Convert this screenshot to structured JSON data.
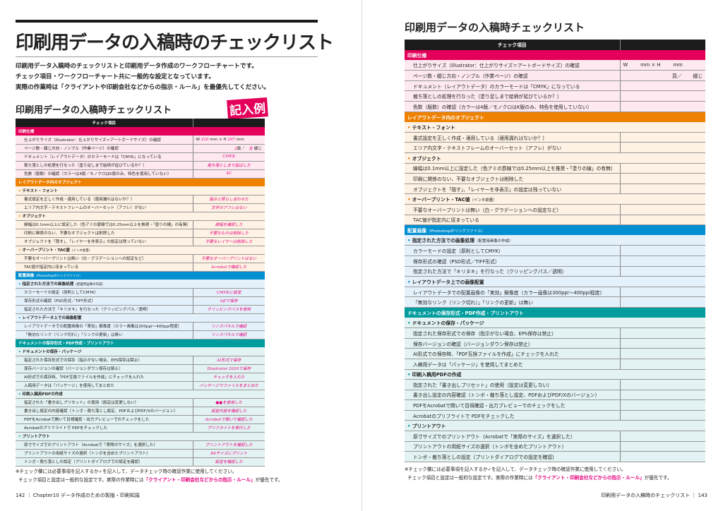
{
  "left": {
    "title": "印刷用データの入稿時のチェックリスト",
    "intro": [
      "印刷用データ入稿時のチェックリストと印刷用データ作成のワークフローチャートです。",
      "チェック項目・ワークフローチャート共に一般的な設定となっています。",
      "実際の作業時は「クライアントや印刷会社などからの指示・ルール」を最優先してください。"
    ],
    "subtitle": "印刷用データの入稿時チェックリスト",
    "stamp": "記入例",
    "footer": "142 ｜ Chapter10 データ作成のための製版・印刷知識"
  },
  "right": {
    "title": "印刷用データの入稿時チェックリスト",
    "footer": "印刷用データの入稿時のチェックリスト ｜ 143"
  },
  "table_header": "チェック項目",
  "notes": {
    "line1": "※チェック欄には必要事項を記入するか✓を記入して、データチェック時の確認作業に使用してください。",
    "line2a": "チェック項目と設定は一般的な設定です。実際の作業時には",
    "line2b": "「クライアント・印刷会社などからの指示・ルール」",
    "line2c": "が優先です。"
  },
  "size_field": {
    "w": "W",
    "mm_h": "mm × H",
    "mm": "mm",
    "w_val": "210",
    "h_val": "297"
  },
  "page_field": {
    "pages": "頁／",
    "bind": "綴じ",
    "pages_val": "2",
    "bind_val": "左"
  },
  "sections": [
    {
      "title": "印刷仕様",
      "sub": "",
      "color": "#e4005a",
      "light": "#fde9ef",
      "groups": [
        {
          "title": "",
          "sub": "",
          "items": [
            {
              "label": "仕上がりサイズ（Illustrator：仕上がりサイズ＝アートボードサイズ）の確認",
              "special": "size"
            },
            {
              "label": "ページ数・綴じ方向・ノンブル（作業ページ）の確認",
              "special": "pages"
            },
            {
              "label": "ドキュメント（レイアウトデータ）のカラーモードは「CMYK」になっている",
              "value": "CMYK"
            },
            {
              "label": "裁ち落としの処理を行なった（塗り足しまで絵柄が延びているか？）",
              "value": "裁ち落としまで延ばした"
            },
            {
              "label": "色数（版数）の確認（カラーは4版／モノクロはK版のみ、特色を使用していない）",
              "value": "4C"
            }
          ]
        }
      ]
    },
    {
      "title": "レイアウトデータ内のオブジェクト",
      "sub": "",
      "color": "#ee8100",
      "light": "#fdf2e3",
      "groups": [
        {
          "title": "テキスト・フォント",
          "sub": "",
          "items": [
            {
              "label": "書式設定を正しく作成・適用している（適用漏れはないか？）",
              "value": "指示と照らし合わせた"
            },
            {
              "label": "エリア内文字・テキストフレームのオーバーセット（アフレ）がない",
              "value": "文字のアフレはない"
            }
          ]
        },
        {
          "title": "オブジェクト",
          "sub": "",
          "items": [
            {
              "label": "線幅は0.1mm以上に設定した（色アミの罫線では0.25mm以上を推奨・「塗りの線」の有無）",
              "value": "線幅を確認した"
            },
            {
              "label": "印刷に関係のない、不要なオブジェクトは削除した",
              "value": "不要なものは削除した"
            },
            {
              "label": "オブジェクトを「隠す」、「レイヤーを非表示」の設定は残っていない",
              "value": "不要なレイヤーは削除した"
            }
          ]
        },
        {
          "title": "オーバープリント・TAC値",
          "sub": "（インキ総量）",
          "items": [
            {
              "label": "不要なオーバープリントは無い（白・グラデーションへの設定など）",
              "value": "不要なオーバープリントはない"
            },
            {
              "label": "TAC値が指定内に収まっている",
              "value": "Acrobatで確認した"
            }
          ]
        }
      ]
    },
    {
      "title": "配置画像",
      "sub": "（Photoshopのリンクファイル）",
      "color": "#008fd0",
      "light": "#e5f1fa",
      "groups": [
        {
          "title": "指定された方法での画像処理",
          "sub": "（配置用画像の作成）",
          "items": [
            {
              "label": "カラーモードの設定（原則としてCMYK）",
              "value": "CMYKに設定"
            },
            {
              "label": "保存形式の確認（PSD形式／TIFF形式）",
              "value": "tiffで保存"
            },
            {
              "label": "指定された方法で「キリヌキ」を行なった（クリッピングパス／透明）",
              "value": "クリッピングパスを使用"
            }
          ]
        },
        {
          "title": "レイアウトデータ上での画像配置",
          "sub": "",
          "items": [
            {
              "label": "レイアウトデータでの配置画像の「実効」解像度（カラー画像は300ppi～400ppi程度）",
              "value": "リンクパネルで確認"
            },
            {
              "label": "「無効なリンク（リンク切れ）」「リンクの更新」は無い",
              "value": "リンクパネルで確認"
            }
          ]
        }
      ]
    },
    {
      "title": "ドキュメントの保存形式・PDF作成・プリントアウト",
      "sub": "",
      "color": "#009c9e",
      "light": "#e3f2f2",
      "groups": [
        {
          "title": "ドキュメントの保存・パッケージ",
          "sub": "",
          "items": [
            {
              "label": "指定された保存形式での保存（指示がない場合、EPS保存は禁止）",
              "value": "AI形式で保存"
            },
            {
              "label": "保存バージョンの確認（バージョンダウン保存は禁止）",
              "value": "Illustrator 2020で保存"
            },
            {
              "label": "AI形式での保存時、「PDF互換ファイルを作成」にチェックを入れた",
              "value": "チェックを入れた"
            },
            {
              "label": "入稿用データは「パッケージ」を使用してまとめた",
              "value": "パッケージでファイルをまとめた"
            }
          ]
        },
        {
          "title": "印刷入稿用PDFの作成",
          "sub": "",
          "items": [
            {
              "label": "指定された「書き出しプリセット」の使用（設定は変更しない）",
              "value": "●●を使用した"
            },
            {
              "label": "書き出し設定の内容確認（トンボ・裁ち落とし設定、PDFおよびPDF/Xのバージョン）",
              "value": "設定内容を確認した"
            },
            {
              "label": "PDFをAcrobatで開いて目視確認・出力プレビューでのチェックをした",
              "value": "Acrobatで開いて確認した"
            },
            {
              "label": "Acrobatのプリフライトで PDFをチェックした",
              "value": "プリフライトを実行した"
            }
          ]
        },
        {
          "title": "プリントアウト",
          "sub": "",
          "items": [
            {
              "label": "原寸サイズでのプリントアウト（Acrobatで「実際のサイズ」を選択した）",
              "value": "プリントアウトを確認した"
            },
            {
              "label": "プリントアウトの用紙サイズの選択（トンボを含めたプリントアウト）",
              "value": "B4サイズにプリント"
            },
            {
              "label": "トンボ・裁ち落としの設定（プリントダイアログでの設定を確認）",
              "value": "設定を確認した"
            }
          ]
        }
      ]
    }
  ]
}
